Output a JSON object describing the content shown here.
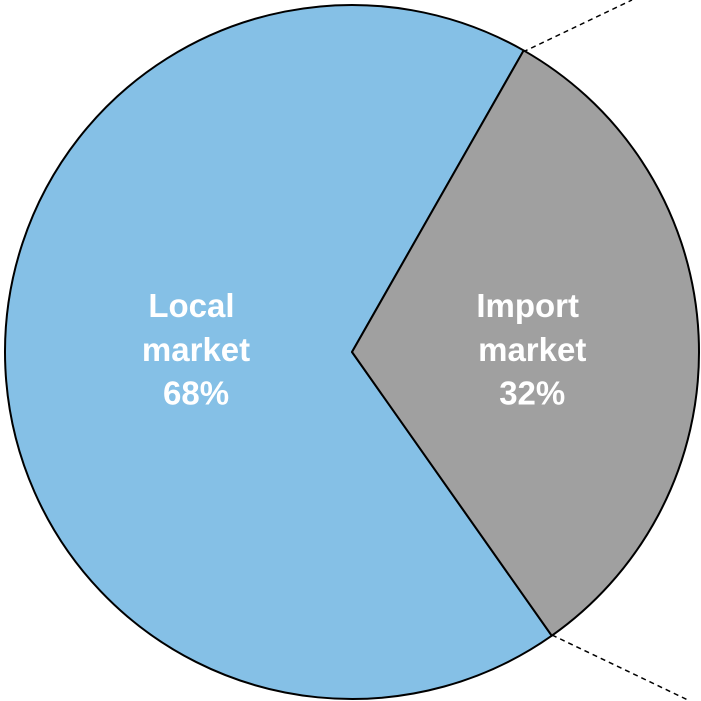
{
  "chart_data": {
    "type": "pie",
    "categories": [
      "Local market",
      "Import market"
    ],
    "values": [
      68,
      32
    ],
    "value_labels": [
      "68%",
      "32%"
    ],
    "colors": [
      "#85c0e6",
      "#a0a0a0"
    ]
  }
}
